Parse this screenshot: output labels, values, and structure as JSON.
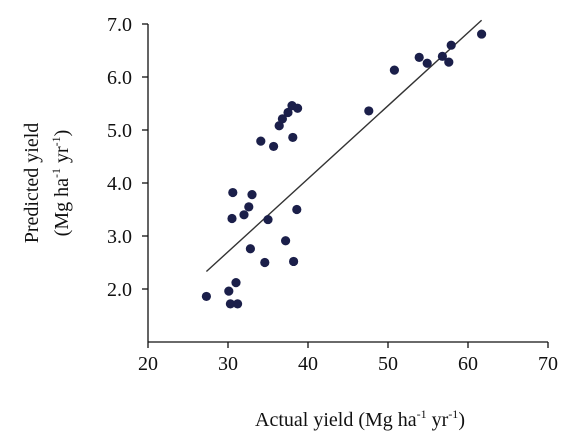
{
  "chart_data": {
    "type": "scatter",
    "xlabel": {
      "text": "Actual yield (Mg ha",
      "sup1": "-1",
      "mid": " yr",
      "sup2": "-1",
      "end": ")"
    },
    "ylabel": {
      "line1": "Predicted yield",
      "line2_text": "(Mg ha",
      "line2_sup1": "-1",
      "line2_mid": " yr",
      "line2_sup2": "-1",
      "line2_end": ")"
    },
    "xlim": [
      20,
      70
    ],
    "ylim": [
      1.0,
      7.0
    ],
    "x_ticks": [
      20,
      30,
      40,
      50,
      60,
      70
    ],
    "x_tick_labels": [
      "20",
      "30",
      "40",
      "50",
      "60",
      "70"
    ],
    "y_ticks": [
      2.0,
      3.0,
      4.0,
      5.0,
      6.0,
      7.0
    ],
    "y_tick_labels": [
      "2.0",
      "3.0",
      "4.0",
      "5.0",
      "6.0",
      "7.0"
    ],
    "points": [
      {
        "x": 27.3,
        "y": 1.86
      },
      {
        "x": 30.1,
        "y": 1.96
      },
      {
        "x": 30.3,
        "y": 1.72
      },
      {
        "x": 31.0,
        "y": 2.12
      },
      {
        "x": 31.2,
        "y": 1.72
      },
      {
        "x": 30.5,
        "y": 3.33
      },
      {
        "x": 30.6,
        "y": 3.82
      },
      {
        "x": 32.0,
        "y": 3.4
      },
      {
        "x": 32.6,
        "y": 3.55
      },
      {
        "x": 33.0,
        "y": 3.78
      },
      {
        "x": 32.8,
        "y": 2.76
      },
      {
        "x": 34.1,
        "y": 4.79
      },
      {
        "x": 34.6,
        "y": 2.5
      },
      {
        "x": 35.0,
        "y": 3.31
      },
      {
        "x": 35.7,
        "y": 4.69
      },
      {
        "x": 36.4,
        "y": 5.08
      },
      {
        "x": 36.8,
        "y": 5.21
      },
      {
        "x": 37.2,
        "y": 2.91
      },
      {
        "x": 37.5,
        "y": 5.33
      },
      {
        "x": 38.0,
        "y": 5.46
      },
      {
        "x": 38.1,
        "y": 4.86
      },
      {
        "x": 38.2,
        "y": 2.52
      },
      {
        "x": 38.6,
        "y": 3.5
      },
      {
        "x": 38.7,
        "y": 5.41
      },
      {
        "x": 47.6,
        "y": 5.36
      },
      {
        "x": 50.8,
        "y": 6.13
      },
      {
        "x": 53.9,
        "y": 6.37
      },
      {
        "x": 54.9,
        "y": 6.26
      },
      {
        "x": 56.8,
        "y": 6.39
      },
      {
        "x": 57.6,
        "y": 6.28
      },
      {
        "x": 57.9,
        "y": 6.6
      },
      {
        "x": 61.7,
        "y": 6.81
      }
    ],
    "fit_line": {
      "x1": 27.3,
      "y1": 2.33,
      "x2": 61.7,
      "y2": 7.07
    },
    "grid": false,
    "colors": {
      "marker": "#1b1f4a",
      "fit_line": "#333333",
      "axis": "#111111"
    }
  }
}
